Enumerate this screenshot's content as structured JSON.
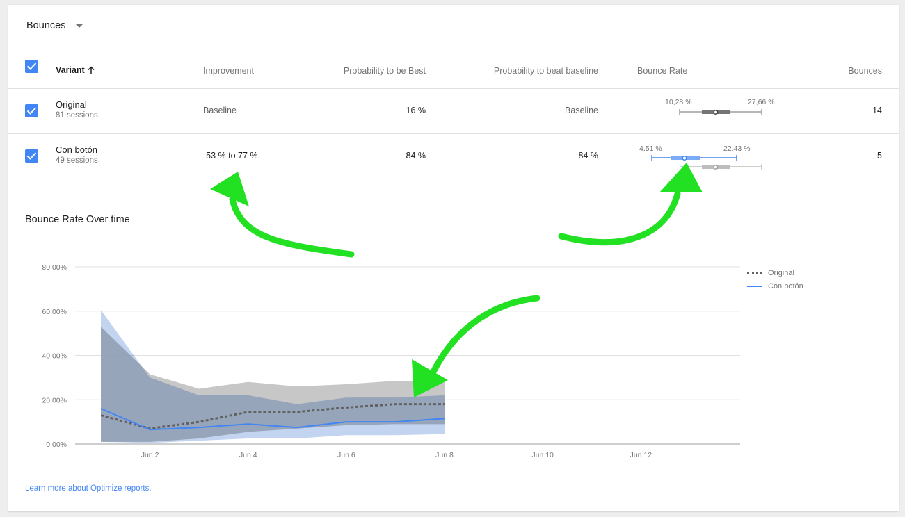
{
  "metric_selector": {
    "label": "Bounces"
  },
  "table": {
    "headers": {
      "variant": "Variant",
      "improvement": "Improvement",
      "prob_best": "Probability to be Best",
      "prob_beat": "Probability to beat baseline",
      "bounce_rate": "Bounce Rate",
      "bounces": "Bounces"
    },
    "rows": [
      {
        "name": "Original",
        "sessions": "81 sessions",
        "improvement": "Baseline",
        "prob_best": "16 %",
        "prob_beat": "Baseline",
        "ci_low": "10,28 %",
        "ci_high": "27,66 %",
        "bounces": "14"
      },
      {
        "name": "Con botón",
        "sessions": "49 sessions",
        "improvement": "-53 % to 77 %",
        "prob_best": "84 %",
        "prob_beat": "84 %",
        "ci_low": "4,51 %",
        "ci_high": "22,43 %",
        "bounces": "5"
      }
    ]
  },
  "chart_title": "Bounce Rate Over time",
  "learn_more": "Learn more about Optimize reports.",
  "colors": {
    "accent": "#4285f4",
    "original_band": "#bdbdbd",
    "variant_band": "#aec6ea",
    "annotation_arrow": "#22e022"
  },
  "chart_data": {
    "type": "line",
    "title": "Bounce Rate Over time",
    "ylim": [
      0,
      80
    ],
    "yticks": [
      "0.00%",
      "20.00%",
      "40.00%",
      "60.00%",
      "80.00%"
    ],
    "yvalues": [
      0,
      20,
      40,
      60,
      80
    ],
    "xlim": [
      1,
      14
    ],
    "xticks": [
      {
        "day": 2,
        "label": "Jun 2"
      },
      {
        "day": 4,
        "label": "Jun 4"
      },
      {
        "day": 6,
        "label": "Jun 6"
      },
      {
        "day": 8,
        "label": "Jun 8"
      },
      {
        "day": 10,
        "label": "Jun 10"
      },
      {
        "day": 12,
        "label": "Jun 12"
      }
    ],
    "legend_position": "top-right",
    "series": [
      {
        "name": "Original",
        "style": "dotted",
        "color": "#616161",
        "band_color": "#bdbdbd",
        "x": [
          1,
          2,
          3,
          4,
          5,
          6,
          7,
          8
        ],
        "values": [
          13,
          7,
          10,
          14.5,
          14.5,
          16.5,
          18,
          18
        ],
        "band_low": [
          1,
          1,
          2.5,
          5.5,
          7,
          8.5,
          9,
          9
        ],
        "band_high": [
          53,
          31.5,
          25,
          28,
          26,
          27,
          28.5,
          28
        ]
      },
      {
        "name": "Con botón",
        "style": "solid",
        "color": "#4285f4",
        "band_color": "#aec6ea",
        "x": [
          1,
          2,
          3,
          4,
          5,
          6,
          7,
          8
        ],
        "values": [
          16,
          6.5,
          7.5,
          9,
          7.5,
          10,
          10,
          11.5
        ],
        "band_low": [
          1,
          0.5,
          1.5,
          2.5,
          2.5,
          4,
          4,
          4.5
        ],
        "band_high": [
          60.5,
          30,
          22,
          22,
          18,
          21,
          21,
          22
        ]
      }
    ]
  }
}
